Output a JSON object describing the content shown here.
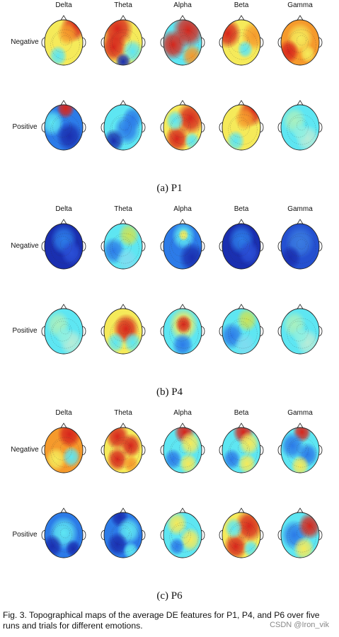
{
  "bands": [
    "Delta",
    "Theta",
    "Alpha",
    "Beta",
    "Gamma"
  ],
  "rows": [
    "Negative",
    "Positive"
  ],
  "colors": {
    "darkblue": "#1a2fb0",
    "blue": "#2c7be8",
    "cyan": "#5ee6f2",
    "yellow": "#f5ea5a",
    "orange": "#f59a2c",
    "red": "#d7261c"
  },
  "panels": [
    {
      "caption": "(a)  P1",
      "maps": [
        [
          "yellow-top-red",
          "red-top-left",
          "red-top-right",
          "yellow-red-edge",
          "orange-light"
        ],
        [
          "blue-top-red",
          "blue-cyan",
          "red-yellow-right",
          "yellow-top-red",
          "cyan-green"
        ]
      ]
    },
    {
      "caption": "(b)  P4",
      "maps": [
        [
          "deep-blue",
          "cyan-light",
          "blue-light-top",
          "deep-blue",
          "deep-blue-light"
        ],
        [
          "cyan-green",
          "red-center",
          "red-top-center",
          "cyan-light",
          "cyan-green"
        ]
      ]
    },
    {
      "caption": "(c)  P6",
      "maps": [
        [
          "orange-red-top",
          "red-yellow-spots",
          "cyan-red-top",
          "cyan-red-top",
          "blue-cyan-top-red"
        ],
        [
          "blue-light",
          "blue-red-top",
          "cyan-yellow",
          "red-yellow-right",
          "blue-red-right"
        ]
      ]
    }
  ],
  "figure_caption": "Fig. 3. Topographical maps of the average DE features for P1, P4, and P6 over five runs and trials for different emotions.",
  "watermark": "CSDN @Iron_vik"
}
